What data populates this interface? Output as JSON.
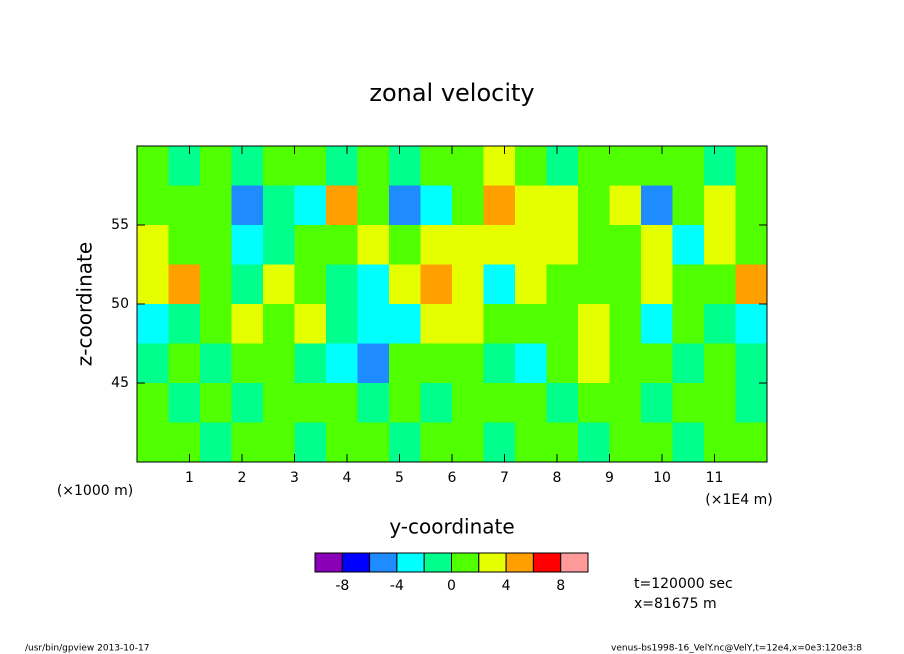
{
  "chart_data": {
    "type": "contour",
    "title": "zonal velocity",
    "x_label": "y-coordinate",
    "y_label": "z-coordinate",
    "x_unit": "(×1000 m)",
    "x_scale_note": "(×1E4 m)",
    "time_note": "t=120000 sec",
    "position_note": "x=81675 m",
    "footer_left": "/usr/bin/gpview  2013-10-17",
    "footer_right": "venus-bs1998-16_VelY.nc@VelY,t=12e4,x=0e3:120e3:8",
    "xlim": [
      0,
      12
    ],
    "ylim": [
      40,
      60
    ],
    "xticks": [
      1,
      2,
      3,
      4,
      5,
      6,
      7,
      8,
      9,
      10,
      11
    ],
    "yticks": [
      45,
      50,
      55
    ],
    "x": [
      0.3,
      0.9,
      1.5,
      2.1,
      2.7,
      3.3,
      3.9,
      4.5,
      5.1,
      5.7,
      6.3,
      6.9,
      7.5,
      8.1,
      8.7,
      9.3,
      9.9,
      10.5,
      11.1,
      11.7
    ],
    "y": [
      58.75,
      56.25,
      53.75,
      51.25,
      48.75,
      46.25,
      43.75,
      41.25
    ],
    "z": [
      [
        1,
        -1,
        1,
        -1,
        1,
        1,
        -1,
        1,
        -1,
        1,
        1,
        3,
        1,
        -1,
        1,
        1,
        1,
        1,
        -1,
        1
      ],
      [
        1,
        1,
        1,
        -5,
        -1,
        -3,
        5,
        1,
        -5,
        -3,
        1,
        5,
        3,
        3,
        1,
        3,
        -5,
        1,
        3,
        1
      ],
      [
        3,
        1,
        1,
        -3,
        -1,
        1,
        1,
        3,
        1,
        3,
        3,
        3,
        3,
        3,
        1,
        1,
        3,
        -3,
        3,
        1
      ],
      [
        3,
        5,
        1,
        -1,
        3,
        1,
        -1,
        -3,
        3,
        5,
        3,
        -3,
        3,
        1,
        1,
        1,
        3,
        1,
        1,
        5
      ],
      [
        -3,
        -1,
        1,
        3,
        1,
        3,
        -1,
        -3,
        -3,
        3,
        3,
        1,
        1,
        1,
        3,
        1,
        -3,
        1,
        -1,
        -3
      ],
      [
        -1,
        1,
        -1,
        1,
        1,
        -1,
        -3,
        -5,
        1,
        1,
        1,
        -1,
        -3,
        1,
        3,
        1,
        1,
        -1,
        1,
        -1
      ],
      [
        1,
        -1,
        1,
        -1,
        1,
        1,
        1,
        -1,
        1,
        -1,
        1,
        1,
        1,
        -1,
        1,
        1,
        -1,
        1,
        1,
        -1
      ],
      [
        1,
        1,
        -1,
        1,
        1,
        -1,
        1,
        1,
        -1,
        1,
        1,
        -1,
        1,
        1,
        -1,
        1,
        1,
        -1,
        1,
        1
      ]
    ],
    "colorbar": {
      "levels": [
        -10,
        -8,
        -6,
        -4,
        -2,
        0,
        2,
        4,
        6,
        8,
        10
      ],
      "colors": [
        "#8a00b8",
        "#0000ff",
        "#1e8cff",
        "#00ffff",
        "#00ff8c",
        "#50ff00",
        "#e6ff00",
        "#ffa000",
        "#ff0000",
        "#ff9a9a"
      ],
      "ticks": [
        -8,
        -4,
        0,
        4,
        8
      ]
    }
  }
}
